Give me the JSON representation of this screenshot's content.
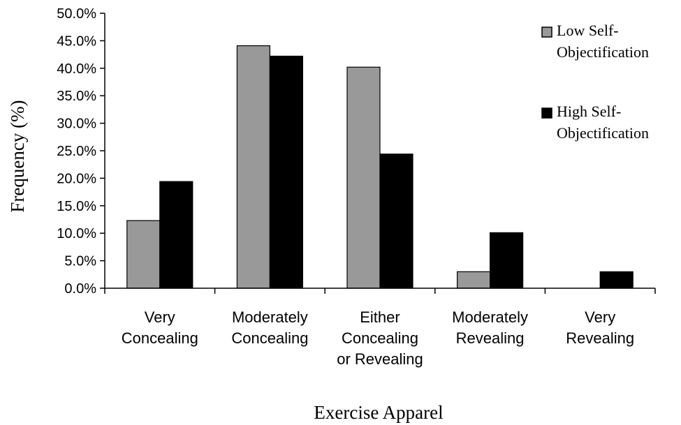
{
  "chart_data": {
    "type": "bar",
    "title": "",
    "xlabel": "Exercise Apparel",
    "ylabel": "Frequency (%)",
    "ylim": [
      0,
      50
    ],
    "yticks": [
      "0.0%",
      "5.0%",
      "10.0%",
      "15.0%",
      "20.0%",
      "25.0%",
      "30.0%",
      "35.0%",
      "40.0%",
      "45.0%",
      "50.0%"
    ],
    "categories": [
      [
        "Very",
        "Concealing"
      ],
      [
        "Moderately",
        "Concealing"
      ],
      [
        "Either",
        "Concealing",
        "or Revealing"
      ],
      [
        "Moderately",
        "Revealing"
      ],
      [
        "Very",
        "Revealing"
      ]
    ],
    "series": [
      {
        "name": [
          "Low Self-",
          "Objectification"
        ],
        "color": "#999999",
        "values": [
          12.3,
          44.1,
          40.2,
          3.0,
          0.0
        ]
      },
      {
        "name": [
          "High Self-",
          "Objectification"
        ],
        "color": "#000000",
        "values": [
          19.4,
          42.2,
          24.4,
          10.1,
          3.0
        ]
      }
    ],
    "legend_position": "top-right",
    "grid": false
  }
}
